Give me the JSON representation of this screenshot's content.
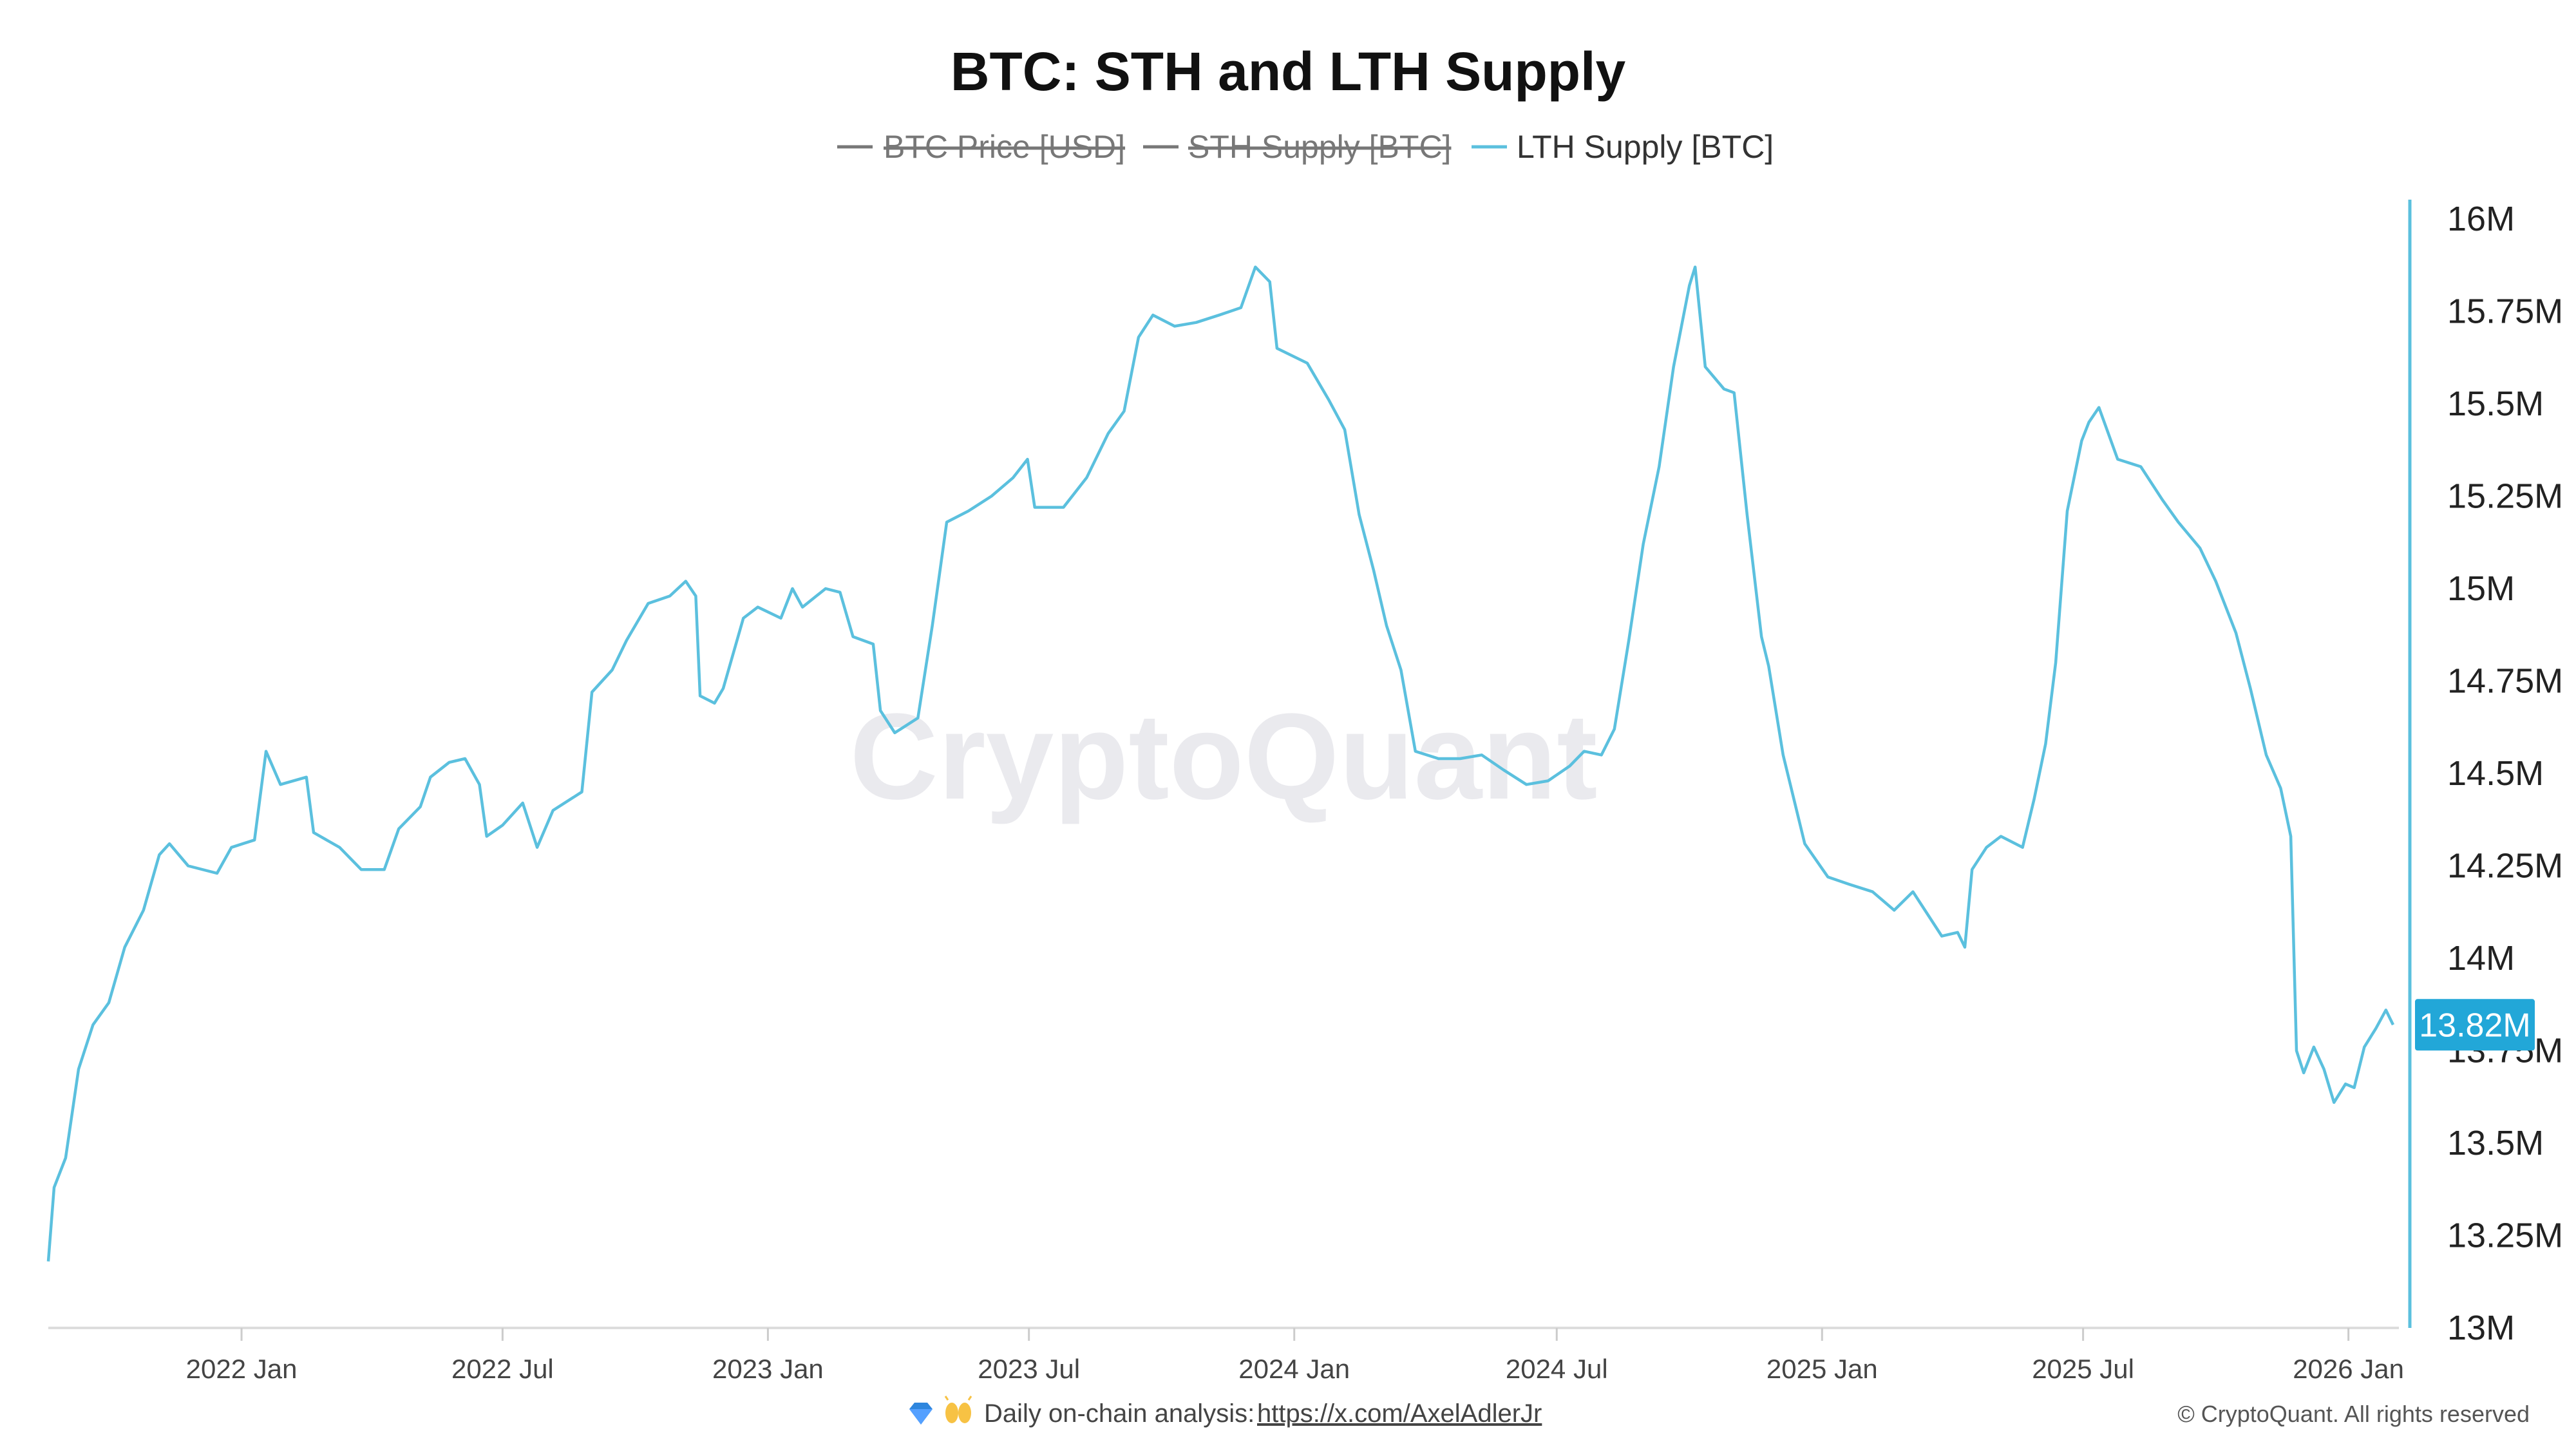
{
  "colors": {
    "lth": "#5bc0de",
    "disabled": "#777777",
    "badge": "#22a7d8",
    "axis": "#dddddd"
  },
  "chart_data": {
    "type": "line",
    "title": "BTC: STH and LTH Supply",
    "legend": [
      {
        "name": "BTC Price [USD]",
        "enabled": false,
        "color": "#777777"
      },
      {
        "name": "STH Supply [BTC]",
        "enabled": false,
        "color": "#777777"
      },
      {
        "name": "LTH Supply [BTC]",
        "enabled": true,
        "color": "#5bc0de"
      }
    ],
    "legend_position": "top-center",
    "ylim": [
      13000000,
      16000000
    ],
    "y_axis_side": "right",
    "y_ticks": [
      {
        "value": 16000000,
        "label": "16M"
      },
      {
        "value": 15750000,
        "label": "15.75M"
      },
      {
        "value": 15500000,
        "label": "15.5M"
      },
      {
        "value": 15250000,
        "label": "15.25M"
      },
      {
        "value": 15000000,
        "label": "15M"
      },
      {
        "value": 14750000,
        "label": "14.75M"
      },
      {
        "value": 14500000,
        "label": "14.5M"
      },
      {
        "value": 14250000,
        "label": "14.25M"
      },
      {
        "value": 14000000,
        "label": "14M"
      },
      {
        "value": 13750000,
        "label": "13.75M"
      },
      {
        "value": 13500000,
        "label": "13.5M"
      },
      {
        "value": 13250000,
        "label": "13.25M"
      },
      {
        "value": 13000000,
        "label": "13M"
      }
    ],
    "xlim": [
      "2021-08-20",
      "2026-02-05"
    ],
    "x_ticks": [
      {
        "date": "2022-01-01",
        "label": "2022 Jan"
      },
      {
        "date": "2022-07-01",
        "label": "2022 Jul"
      },
      {
        "date": "2023-01-01",
        "label": "2023 Jan"
      },
      {
        "date": "2023-07-01",
        "label": "2023 Jul"
      },
      {
        "date": "2024-01-01",
        "label": "2024 Jan"
      },
      {
        "date": "2024-07-01",
        "label": "2024 Jul"
      },
      {
        "date": "2025-01-01",
        "label": "2025 Jan"
      },
      {
        "date": "2025-07-01",
        "label": "2025 Jul"
      },
      {
        "date": "2026-01-01",
        "label": "2026 Jan"
      }
    ],
    "grid": false,
    "last_value_label": "13.82M",
    "series": [
      {
        "name": "LTH Supply [BTC]",
        "points": [
          [
            "2021-08-20",
            13180000
          ],
          [
            "2021-08-24",
            13380000
          ],
          [
            "2021-09-01",
            13460000
          ],
          [
            "2021-09-10",
            13700000
          ],
          [
            "2021-09-20",
            13820000
          ],
          [
            "2021-10-01",
            13880000
          ],
          [
            "2021-10-12",
            14030000
          ],
          [
            "2021-10-25",
            14130000
          ],
          [
            "2021-11-05",
            14280000
          ],
          [
            "2021-11-12",
            14310000
          ],
          [
            "2021-11-25",
            14250000
          ],
          [
            "2021-12-15",
            14230000
          ],
          [
            "2021-12-25",
            14300000
          ],
          [
            "2022-01-10",
            14320000
          ],
          [
            "2022-01-18",
            14560000
          ],
          [
            "2022-01-28",
            14470000
          ],
          [
            "2022-02-15",
            14490000
          ],
          [
            "2022-02-20",
            14340000
          ],
          [
            "2022-03-10",
            14300000
          ],
          [
            "2022-03-25",
            14240000
          ],
          [
            "2022-04-10",
            14240000
          ],
          [
            "2022-04-20",
            14350000
          ],
          [
            "2022-05-05",
            14410000
          ],
          [
            "2022-05-12",
            14490000
          ],
          [
            "2022-05-25",
            14530000
          ],
          [
            "2022-06-05",
            14540000
          ],
          [
            "2022-06-15",
            14470000
          ],
          [
            "2022-06-20",
            14330000
          ],
          [
            "2022-07-01",
            14360000
          ],
          [
            "2022-07-15",
            14420000
          ],
          [
            "2022-07-25",
            14300000
          ],
          [
            "2022-08-05",
            14400000
          ],
          [
            "2022-08-25",
            14450000
          ],
          [
            "2022-09-01",
            14720000
          ],
          [
            "2022-09-15",
            14780000
          ],
          [
            "2022-09-25",
            14860000
          ],
          [
            "2022-10-10",
            14960000
          ],
          [
            "2022-10-25",
            14980000
          ],
          [
            "2022-11-05",
            15020000
          ],
          [
            "2022-11-12",
            14980000
          ],
          [
            "2022-11-15",
            14710000
          ],
          [
            "2022-11-25",
            14690000
          ],
          [
            "2022-12-01",
            14730000
          ],
          [
            "2022-12-15",
            14920000
          ],
          [
            "2022-12-25",
            14950000
          ],
          [
            "2023-01-10",
            14920000
          ],
          [
            "2023-01-18",
            15000000
          ],
          [
            "2023-01-25",
            14950000
          ],
          [
            "2023-02-10",
            15000000
          ],
          [
            "2023-02-20",
            14990000
          ],
          [
            "2023-03-01",
            14870000
          ],
          [
            "2023-03-15",
            14850000
          ],
          [
            "2023-03-20",
            14670000
          ],
          [
            "2023-03-30",
            14610000
          ],
          [
            "2023-04-15",
            14650000
          ],
          [
            "2023-04-25",
            14900000
          ],
          [
            "2023-05-05",
            15180000
          ],
          [
            "2023-05-20",
            15210000
          ],
          [
            "2023-06-05",
            15250000
          ],
          [
            "2023-06-20",
            15300000
          ],
          [
            "2023-06-30",
            15350000
          ],
          [
            "2023-07-05",
            15220000
          ],
          [
            "2023-07-25",
            15220000
          ],
          [
            "2023-08-10",
            15300000
          ],
          [
            "2023-08-25",
            15420000
          ],
          [
            "2023-09-05",
            15480000
          ],
          [
            "2023-09-15",
            15680000
          ],
          [
            "2023-09-25",
            15740000
          ],
          [
            "2023-10-10",
            15710000
          ],
          [
            "2023-10-25",
            15720000
          ],
          [
            "2023-11-10",
            15740000
          ],
          [
            "2023-11-25",
            15760000
          ],
          [
            "2023-12-05",
            15870000
          ],
          [
            "2023-12-15",
            15830000
          ],
          [
            "2023-12-20",
            15650000
          ],
          [
            "2024-01-10",
            15610000
          ],
          [
            "2024-01-25",
            15510000
          ],
          [
            "2024-02-05",
            15430000
          ],
          [
            "2024-02-15",
            15200000
          ],
          [
            "2024-02-25",
            15050000
          ],
          [
            "2024-03-05",
            14900000
          ],
          [
            "2024-03-15",
            14780000
          ],
          [
            "2024-03-25",
            14560000
          ],
          [
            "2024-04-10",
            14540000
          ],
          [
            "2024-04-25",
            14540000
          ],
          [
            "2024-05-10",
            14550000
          ],
          [
            "2024-05-25",
            14510000
          ],
          [
            "2024-06-10",
            14470000
          ],
          [
            "2024-06-25",
            14480000
          ],
          [
            "2024-07-10",
            14520000
          ],
          [
            "2024-07-20",
            14560000
          ],
          [
            "2024-08-01",
            14550000
          ],
          [
            "2024-08-10",
            14620000
          ],
          [
            "2024-08-20",
            14860000
          ],
          [
            "2024-08-30",
            15120000
          ],
          [
            "2024-09-10",
            15330000
          ],
          [
            "2024-09-20",
            15600000
          ],
          [
            "2024-10-01",
            15820000
          ],
          [
            "2024-10-05",
            15870000
          ],
          [
            "2024-10-12",
            15600000
          ],
          [
            "2024-10-25",
            15540000
          ],
          [
            "2024-11-01",
            15530000
          ],
          [
            "2024-11-10",
            15200000
          ],
          [
            "2024-11-20",
            14870000
          ],
          [
            "2024-11-25",
            14790000
          ],
          [
            "2024-12-05",
            14550000
          ],
          [
            "2024-12-20",
            14310000
          ],
          [
            "2025-01-05",
            14220000
          ],
          [
            "2025-01-20",
            14200000
          ],
          [
            "2025-02-05",
            14180000
          ],
          [
            "2025-02-20",
            14130000
          ],
          [
            "2025-03-05",
            14180000
          ],
          [
            "2025-03-15",
            14120000
          ],
          [
            "2025-03-25",
            14060000
          ],
          [
            "2025-04-05",
            14070000
          ],
          [
            "2025-04-10",
            14030000
          ],
          [
            "2025-04-15",
            14240000
          ],
          [
            "2025-04-25",
            14300000
          ],
          [
            "2025-05-05",
            14330000
          ],
          [
            "2025-05-20",
            14300000
          ],
          [
            "2025-05-28",
            14430000
          ],
          [
            "2025-06-05",
            14580000
          ],
          [
            "2025-06-12",
            14800000
          ],
          [
            "2025-06-20",
            15210000
          ],
          [
            "2025-06-30",
            15400000
          ],
          [
            "2025-07-05",
            15450000
          ],
          [
            "2025-07-12",
            15490000
          ],
          [
            "2025-07-25",
            15350000
          ],
          [
            "2025-08-10",
            15330000
          ],
          [
            "2025-08-25",
            15240000
          ],
          [
            "2025-09-05",
            15180000
          ],
          [
            "2025-09-20",
            15110000
          ],
          [
            "2025-10-01",
            15020000
          ],
          [
            "2025-10-15",
            14880000
          ],
          [
            "2025-10-25",
            14730000
          ],
          [
            "2025-11-05",
            14550000
          ],
          [
            "2025-11-15",
            14460000
          ],
          [
            "2025-11-22",
            14330000
          ],
          [
            "2025-11-26",
            13750000
          ],
          [
            "2025-12-01",
            13690000
          ],
          [
            "2025-12-08",
            13760000
          ],
          [
            "2025-12-15",
            13700000
          ],
          [
            "2025-12-22",
            13610000
          ],
          [
            "2025-12-30",
            13660000
          ],
          [
            "2026-01-05",
            13650000
          ],
          [
            "2026-01-12",
            13760000
          ],
          [
            "2026-01-20",
            13810000
          ],
          [
            "2026-01-27",
            13860000
          ],
          [
            "2026-02-01",
            13820000
          ]
        ]
      }
    ]
  },
  "watermark": "CryptoQuant",
  "footer": {
    "icons": [
      "gem-icon",
      "raising-hands-icon"
    ],
    "text": "Daily on-chain analysis: ",
    "link": "https://x.com/AxelAdlerJr",
    "copyright": "© CryptoQuant. All rights reserved"
  }
}
